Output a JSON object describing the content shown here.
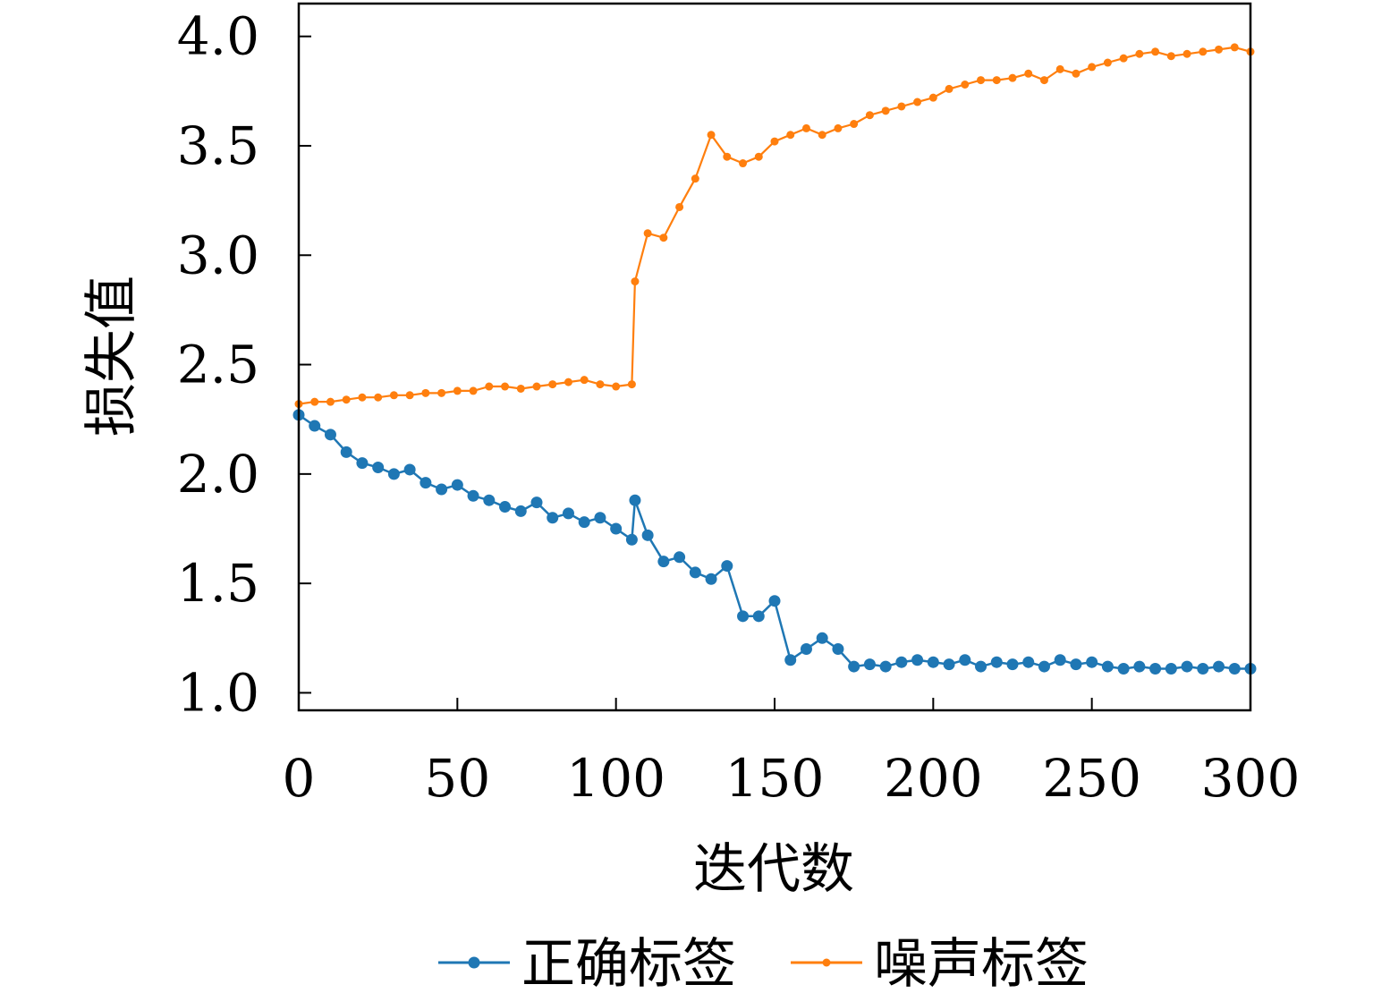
{
  "chart_data": {
    "type": "line",
    "title": "",
    "xlabel": "迭代数",
    "ylabel": "损失值",
    "xlim": [
      0,
      300
    ],
    "ylim": [
      0.92,
      4.15
    ],
    "xticks": [
      0,
      50,
      100,
      150,
      200,
      250,
      300
    ],
    "xtick_labels": [
      "0",
      "50",
      "100",
      "150",
      "200",
      "250",
      "300"
    ],
    "yticks": [
      1.0,
      1.5,
      2.0,
      2.5,
      3.0,
      3.5,
      4.0
    ],
    "ytick_labels": [
      "1.0",
      "1.5",
      "2.0",
      "2.5",
      "3.0",
      "3.5",
      "4.0"
    ],
    "grid": false,
    "legend_position": "bottom",
    "x": [
      0,
      5,
      10,
      15,
      20,
      25,
      30,
      35,
      40,
      45,
      50,
      55,
      60,
      65,
      70,
      75,
      80,
      85,
      90,
      95,
      100,
      105,
      106,
      110,
      115,
      120,
      125,
      130,
      135,
      140,
      145,
      150,
      155,
      160,
      165,
      170,
      175,
      180,
      185,
      190,
      195,
      200,
      205,
      210,
      215,
      220,
      225,
      230,
      235,
      240,
      245,
      250,
      255,
      260,
      265,
      270,
      275,
      280,
      285,
      290,
      295,
      300
    ],
    "series": [
      {
        "name": "正确标签",
        "color": "#1f77b4",
        "values": [
          2.27,
          2.22,
          2.18,
          2.1,
          2.05,
          2.03,
          2.0,
          2.02,
          1.96,
          1.93,
          1.95,
          1.9,
          1.88,
          1.85,
          1.83,
          1.87,
          1.8,
          1.82,
          1.78,
          1.8,
          1.75,
          1.7,
          1.88,
          1.72,
          1.6,
          1.62,
          1.55,
          1.52,
          1.58,
          1.35,
          1.35,
          1.42,
          1.15,
          1.2,
          1.25,
          1.2,
          1.12,
          1.13,
          1.12,
          1.14,
          1.15,
          1.14,
          1.13,
          1.15,
          1.12,
          1.14,
          1.13,
          1.14,
          1.12,
          1.15,
          1.13,
          1.14,
          1.12,
          1.11,
          1.12,
          1.11,
          1.11,
          1.12,
          1.11,
          1.12,
          1.11,
          1.11
        ]
      },
      {
        "name": "噪声标签",
        "color": "#ff7f0e",
        "values": [
          2.32,
          2.33,
          2.33,
          2.34,
          2.35,
          2.35,
          2.36,
          2.36,
          2.37,
          2.37,
          2.38,
          2.38,
          2.4,
          2.4,
          2.39,
          2.4,
          2.41,
          2.42,
          2.43,
          2.41,
          2.4,
          2.41,
          2.88,
          3.1,
          3.08,
          3.22,
          3.35,
          3.55,
          3.45,
          3.42,
          3.45,
          3.52,
          3.55,
          3.58,
          3.55,
          3.58,
          3.6,
          3.64,
          3.66,
          3.68,
          3.7,
          3.72,
          3.76,
          3.78,
          3.8,
          3.8,
          3.81,
          3.83,
          3.8,
          3.85,
          3.83,
          3.86,
          3.88,
          3.9,
          3.92,
          3.93,
          3.91,
          3.92,
          3.93,
          3.94,
          3.95,
          3.93
        ]
      }
    ]
  }
}
